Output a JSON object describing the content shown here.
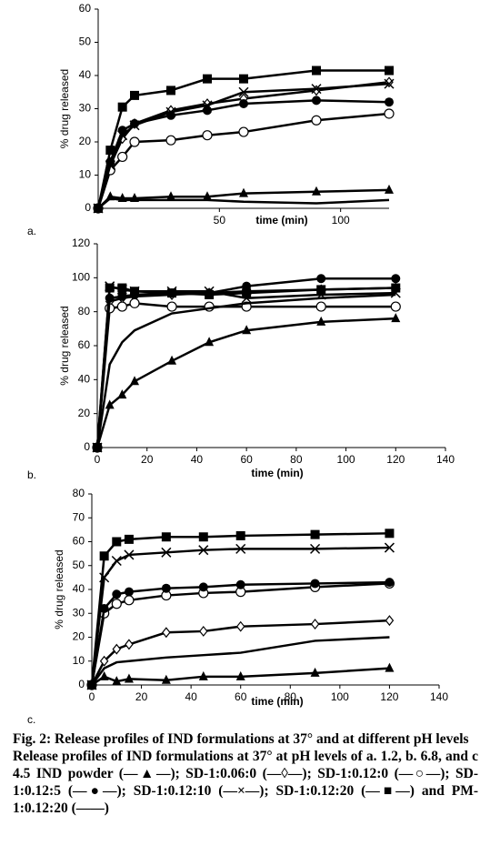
{
  "chart_data": [
    {
      "type": "line",
      "panel_label": "a.",
      "ylabel": "% drug released",
      "xlabel": "time (min)",
      "x": [
        0,
        5,
        10,
        15,
        30,
        45,
        60,
        90,
        120
      ],
      "xlim": [
        0,
        120
      ],
      "ylim": [
        0,
        60
      ],
      "xticks": [
        50,
        100
      ],
      "yticks": [
        0,
        10,
        20,
        30,
        40,
        50,
        60
      ],
      "series": [
        {
          "marker": "triangle",
          "color": "#000000",
          "values": [
            0,
            3.5,
            3,
            3,
            3.5,
            3.5,
            4.5,
            5,
            5.5
          ]
        },
        {
          "marker": "diamond",
          "color": "#000000",
          "values": [
            0,
            13,
            21,
            25.5,
            29.5,
            31.5,
            33,
            35.5,
            38
          ]
        },
        {
          "marker": "open-circle",
          "color": "#000000",
          "values": [
            0,
            11.5,
            15.5,
            20,
            20.5,
            22,
            23,
            26.5,
            28.5
          ]
        },
        {
          "marker": "circle",
          "color": "#000000",
          "values": [
            0,
            14,
            23.5,
            25.5,
            28,
            29.5,
            31.5,
            32.5,
            32
          ]
        },
        {
          "marker": "cross",
          "color": "#000000",
          "values": [
            0,
            13,
            22,
            25,
            29,
            31,
            35,
            36,
            37.5
          ]
        },
        {
          "marker": "square",
          "color": "#000000",
          "values": [
            0,
            17.5,
            30.5,
            34,
            35.5,
            39,
            39,
            41.5,
            41.5
          ]
        },
        {
          "marker": "none",
          "color": "#000000",
          "values": [
            0,
            3,
            2.5,
            2.5,
            2.5,
            2.5,
            2,
            1.5,
            2.5
          ]
        }
      ]
    },
    {
      "type": "line",
      "panel_label": "b.",
      "ylabel": "% drug released",
      "xlabel": "time (min)",
      "x": [
        0,
        5,
        10,
        15,
        30,
        45,
        60,
        90,
        120
      ],
      "xlim": [
        0,
        140
      ],
      "ylim": [
        0,
        120
      ],
      "xticks": [
        0,
        20,
        40,
        60,
        80,
        100,
        120,
        140
      ],
      "yticks": [
        0,
        20,
        40,
        60,
        80,
        100,
        120
      ],
      "series": [
        {
          "marker": "triangle",
          "color": "#000000",
          "values": [
            0,
            25,
            31,
            39,
            51,
            62,
            69,
            74,
            76
          ]
        },
        {
          "marker": "diamond",
          "color": "#000000",
          "values": [
            0,
            86,
            88,
            89,
            90,
            91,
            92,
            93,
            94
          ]
        },
        {
          "marker": "open-circle",
          "color": "#000000",
          "values": [
            0,
            82,
            83,
            85,
            83,
            83,
            83,
            83,
            83
          ]
        },
        {
          "marker": "circle",
          "color": "#000000",
          "values": [
            0,
            88,
            89,
            90,
            91,
            91,
            95,
            99.5,
            99.5
          ]
        },
        {
          "marker": "cross",
          "color": "#000000",
          "values": [
            0,
            95,
            93,
            92,
            92,
            92,
            88,
            90,
            91
          ]
        },
        {
          "marker": "square",
          "color": "#000000",
          "values": [
            0,
            94,
            94,
            92,
            91,
            90,
            91,
            93,
            94
          ]
        },
        {
          "marker": "none",
          "color": "#000000",
          "values": [
            0,
            49,
            62,
            69,
            79,
            82,
            85,
            88,
            90
          ]
        }
      ]
    },
    {
      "type": "line",
      "panel_label": "c.",
      "ylabel": "% drug released",
      "xlabel": "time (min)",
      "x": [
        0,
        5,
        10,
        15,
        30,
        45,
        60,
        90,
        120
      ],
      "xlim": [
        0,
        140
      ],
      "ylim": [
        0,
        80
      ],
      "xticks": [
        0,
        20,
        40,
        60,
        80,
        100,
        120,
        140
      ],
      "yticks": [
        0,
        10,
        20,
        30,
        40,
        50,
        60,
        70,
        80
      ],
      "series": [
        {
          "marker": "triangle",
          "color": "#000000",
          "values": [
            0,
            3.5,
            1.5,
            2.5,
            2,
            3.5,
            3.5,
            5,
            7
          ]
        },
        {
          "marker": "diamond",
          "color": "#000000",
          "values": [
            0,
            10,
            15,
            17,
            22,
            22.5,
            24.5,
            25.5,
            27
          ]
        },
        {
          "marker": "open-circle",
          "color": "#000000",
          "values": [
            0,
            30,
            34,
            35.5,
            37.5,
            38.5,
            39,
            41,
            42.5
          ]
        },
        {
          "marker": "circle",
          "color": "#000000",
          "values": [
            0,
            32,
            38,
            39,
            40.5,
            41,
            42,
            42.5,
            43
          ]
        },
        {
          "marker": "cross",
          "color": "#000000",
          "values": [
            0,
            45,
            52,
            54.5,
            55.5,
            56.5,
            57,
            57,
            57.5
          ]
        },
        {
          "marker": "square",
          "color": "#000000",
          "values": [
            0,
            54,
            60,
            61,
            62,
            62,
            62.5,
            63,
            63.5
          ]
        },
        {
          "marker": "none",
          "color": "#000000",
          "values": [
            0,
            7,
            9.5,
            10,
            11.5,
            12.5,
            13.5,
            18.5,
            20
          ]
        }
      ]
    }
  ],
  "caption": {
    "title": "Fig. 2: Release profiles of IND formulations at 37° and at different pH levels",
    "text": "Release profiles of IND formulations at 37° at pH levels of a. 1.2, b. 6.8, and c 4.5 IND powder (—▲—); SD-1:0.06:0 (—◊—); SD-1:0.12:0 (—○—); SD-1:0.12:5 (—●—); SD-1:0.12:10 (—×—); SD-1:0.12:20 (—■—) and PM-1:0.12:20 (——)"
  }
}
